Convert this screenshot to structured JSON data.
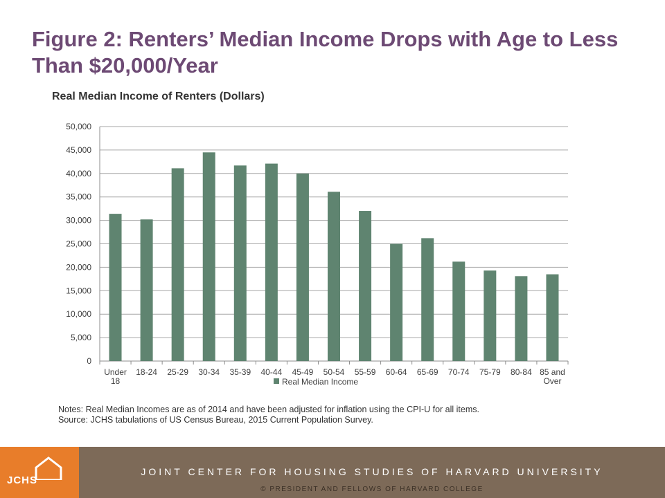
{
  "slide": {
    "title": "Figure 2: Renters’ Median Income Drops with Age to Less Than $20,000/Year"
  },
  "chart_data": {
    "type": "bar",
    "title": "Real Median Income of Renters (Dollars)",
    "categories": [
      "Under 18",
      "18-24",
      "25-29",
      "30-34",
      "35-39",
      "40-44",
      "45-49",
      "50-54",
      "55-59",
      "60-64",
      "65-69",
      "70-74",
      "75-79",
      "80-84",
      "85 and Over"
    ],
    "series": [
      {
        "name": "Real Median Income",
        "values": [
          31400,
          30200,
          41100,
          44500,
          41700,
          42100,
          40000,
          36100,
          32000,
          25000,
          26200,
          21200,
          19300,
          18100,
          18500
        ],
        "color": "#5f8470"
      }
    ],
    "yticks": [
      "0",
      "5,000",
      "10,000",
      "15,000",
      "20,000",
      "25,000",
      "30,000",
      "35,000",
      "40,000",
      "45,000",
      "50,000"
    ],
    "ylim": [
      0,
      50000
    ],
    "grid": true,
    "legend_position": "bottom"
  },
  "notes": {
    "line1": "Notes: Real Median Incomes are as of 2014 and have been adjusted for inflation using the CPI-U for all items.",
    "line2": "Source: JCHS tabulations of US Census Bureau, 2015 Current Population Survey."
  },
  "footer": {
    "logo_text": "JCHS",
    "organization": "JOINT CENTER FOR HOUSING STUDIES OF HARVARD UNIVERSITY",
    "copyright": "© PRESIDENT AND FELLOWS OF HARVARD COLLEGE",
    "logo_color": "#e87d2a",
    "band_color": "#7d6a58"
  }
}
